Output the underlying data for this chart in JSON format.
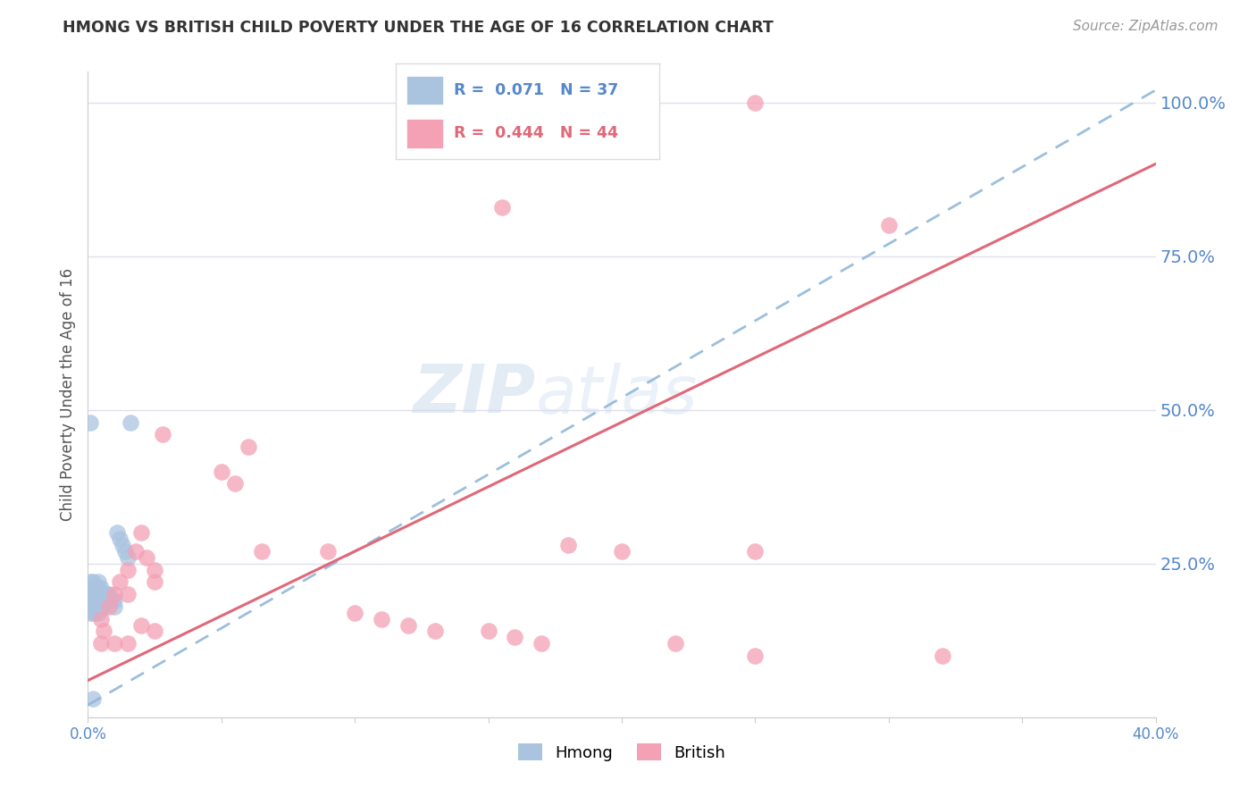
{
  "title": "HMONG VS BRITISH CHILD POVERTY UNDER THE AGE OF 16 CORRELATION CHART",
  "source": "Source: ZipAtlas.com",
  "ylabel": "Child Poverty Under the Age of 16",
  "watermark": "ZIPatlas",
  "legend_label_hmong": "Hmong",
  "legend_label_british": "British",
  "xmin": 0.0,
  "xmax": 0.4,
  "ymin": 0.0,
  "ymax": 1.05,
  "yticks": [
    0.0,
    0.25,
    0.5,
    0.75,
    1.0
  ],
  "ytick_labels": [
    "",
    "25.0%",
    "50.0%",
    "75.0%",
    "100.0%"
  ],
  "xticks": [
    0.0,
    0.05,
    0.1,
    0.15,
    0.2,
    0.25,
    0.3,
    0.35,
    0.4
  ],
  "xtick_labels": [
    "0.0%",
    "",
    "",
    "",
    "",
    "",
    "",
    "",
    "40.0%"
  ],
  "hmong_color": "#aac4e0",
  "british_color": "#f4a0b5",
  "hmong_line_color": "#90b8d8",
  "british_line_color": "#e06878",
  "background_color": "#ffffff",
  "grid_color": "#e0e0eb",
  "axis_color": "#cccccc",
  "right_label_color": "#5588cc",
  "title_color": "#333333",
  "hmong_line_x0": 0.0,
  "hmong_line_y0": 0.02,
  "hmong_line_x1": 0.4,
  "hmong_line_y1": 1.02,
  "british_line_x0": 0.0,
  "british_line_y0": 0.06,
  "british_line_x1": 0.4,
  "british_line_y1": 0.9,
  "hmong_x": [
    0.001,
    0.001,
    0.001,
    0.001,
    0.002,
    0.002,
    0.002,
    0.002,
    0.002,
    0.003,
    0.003,
    0.003,
    0.003,
    0.004,
    0.004,
    0.004,
    0.004,
    0.004,
    0.005,
    0.005,
    0.005,
    0.006,
    0.006,
    0.007,
    0.008,
    0.008,
    0.009,
    0.01,
    0.01,
    0.011,
    0.012,
    0.013,
    0.014,
    0.015,
    0.016,
    0.001,
    0.002
  ],
  "hmong_y": [
    0.22,
    0.2,
    0.19,
    0.17,
    0.22,
    0.21,
    0.19,
    0.18,
    0.17,
    0.21,
    0.2,
    0.19,
    0.17,
    0.22,
    0.21,
    0.2,
    0.19,
    0.17,
    0.21,
    0.2,
    0.18,
    0.2,
    0.18,
    0.2,
    0.2,
    0.19,
    0.19,
    0.19,
    0.18,
    0.3,
    0.29,
    0.28,
    0.27,
    0.26,
    0.48,
    0.48,
    0.03
  ],
  "british_x": [
    0.005,
    0.006,
    0.008,
    0.01,
    0.012,
    0.015,
    0.015,
    0.018,
    0.02,
    0.022,
    0.025,
    0.025,
    0.028,
    0.05,
    0.055,
    0.06,
    0.065,
    0.09,
    0.1,
    0.11,
    0.12,
    0.13,
    0.15,
    0.16,
    0.17,
    0.18,
    0.2,
    0.22,
    0.25,
    0.3,
    0.32,
    0.005,
    0.01,
    0.015,
    0.02,
    0.025,
    0.14,
    0.15,
    0.155,
    0.16,
    0.165,
    0.25,
    0.155,
    0.25
  ],
  "british_y": [
    0.16,
    0.14,
    0.18,
    0.2,
    0.22,
    0.24,
    0.2,
    0.27,
    0.3,
    0.26,
    0.24,
    0.22,
    0.46,
    0.4,
    0.38,
    0.44,
    0.27,
    0.27,
    0.17,
    0.16,
    0.15,
    0.14,
    0.14,
    0.13,
    0.12,
    0.28,
    0.27,
    0.12,
    0.27,
    0.8,
    0.1,
    0.12,
    0.12,
    0.12,
    0.15,
    0.14,
    1.0,
    1.0,
    1.0,
    1.0,
    1.0,
    1.0,
    0.83,
    0.1
  ]
}
